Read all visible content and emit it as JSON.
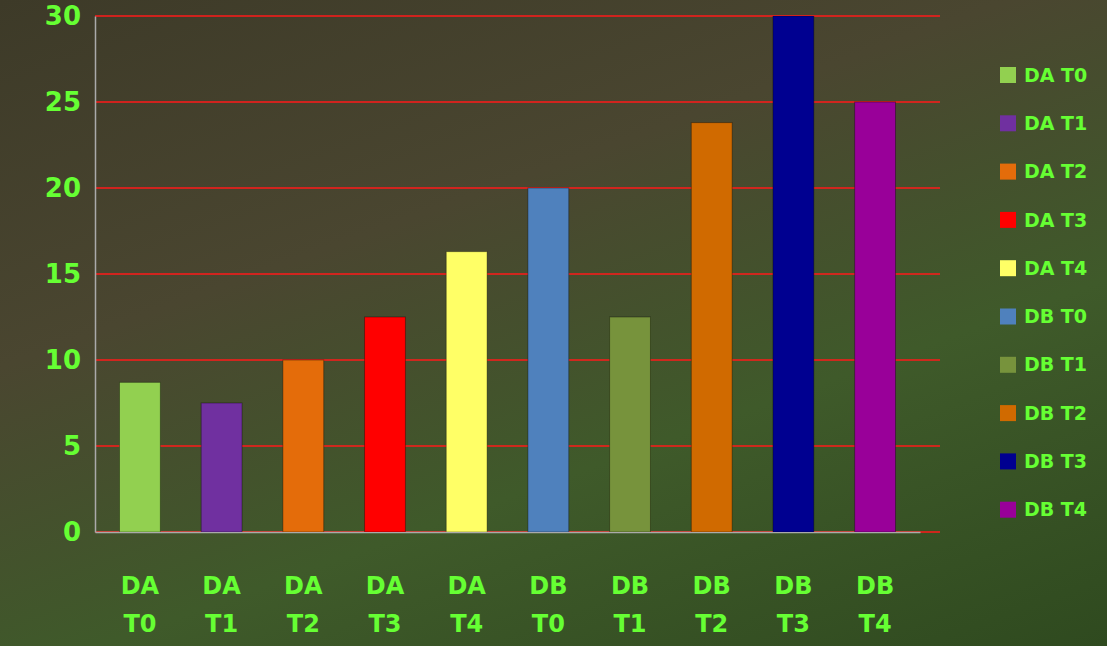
{
  "chart_data": {
    "type": "bar",
    "categories": [
      "DA T0",
      "DA T1",
      "DA T2",
      "DA T3",
      "DA T4",
      "DB T0",
      "DB T1",
      "DB T2",
      "DB T3",
      "DB T4"
    ],
    "values": [
      8.7,
      7.5,
      10,
      12.5,
      16.3,
      20,
      12.5,
      23.8,
      30,
      25
    ],
    "colors": [
      "#92d050",
      "#7030a0",
      "#e46c0a",
      "#ff0000",
      "#ffff66",
      "#4f81bd",
      "#77933c",
      "#d06a00",
      "#000090",
      "#990099"
    ],
    "ylim": [
      0,
      30
    ],
    "yticks": [
      0,
      5,
      10,
      15,
      20,
      25,
      30
    ],
    "grid": true,
    "legend": "right"
  }
}
